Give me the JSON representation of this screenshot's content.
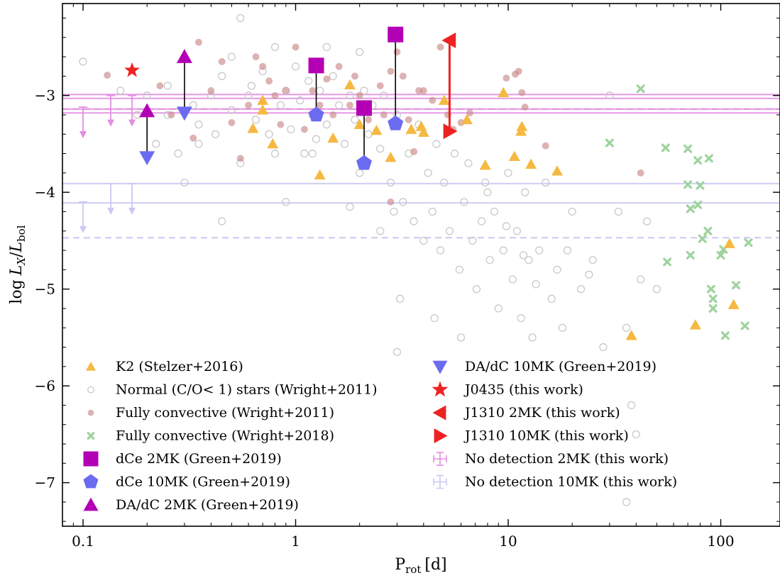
{
  "chart_data": {
    "type": "scatter",
    "title": "",
    "xlabel": "P",
    "xlabel_sub": "rot",
    "xlabel_unit": "[d]",
    "ylabel_prefix": "log",
    "ylabel_num": "L",
    "ylabel_num_sub": "X",
    "ylabel_den": "L",
    "ylabel_den_sub": "bol",
    "xscale": "log",
    "xlim": [
      0.08,
      190
    ],
    "ylim": [
      -7.45,
      -2.05
    ],
    "xticks": [
      0.1,
      1,
      10,
      100
    ],
    "xtick_labels": [
      "0.1",
      "1",
      "10",
      "100"
    ],
    "yticks": [
      -3,
      -4,
      -5,
      -6,
      -7
    ],
    "ytick_labels": [
      "−3",
      "−4",
      "−5",
      "−6",
      "−7"
    ],
    "legend_position": "lower-left",
    "colors": {
      "k2": "#f5b942",
      "normal": "#c8c8c8",
      "fc2011": "#c98b88",
      "fc2018": "#9ed39e",
      "dce": "#b400b4",
      "blue": "#6b6bf0",
      "j0435": "#ee2222",
      "j1310": "#ee2222",
      "nd2": "#e38ee3",
      "nd10": "#c9c9f4"
    },
    "series": [
      {
        "name": "K2 (Stelzer+2016)",
        "marker": "triangle-up",
        "color": "#f5b942",
        "points": [
          [
            0.7,
            -3.05
          ],
          [
            0.7,
            -3.15
          ],
          [
            0.63,
            -3.34
          ],
          [
            0.78,
            -3.5
          ],
          [
            1.3,
            -3.82
          ],
          [
            1.5,
            -3.44
          ],
          [
            1.8,
            -2.89
          ],
          [
            2.0,
            -3.3
          ],
          [
            2.4,
            -3.36
          ],
          [
            2.8,
            -3.64
          ],
          [
            3.5,
            -3.35
          ],
          [
            3.9,
            -3.32
          ],
          [
            4.0,
            -3.38
          ],
          [
            5.0,
            -3.05
          ],
          [
            6.4,
            -3.25
          ],
          [
            7.8,
            -3.72
          ],
          [
            9.5,
            -2.97
          ],
          [
            10.7,
            -3.63
          ],
          [
            11.5,
            -3.37
          ],
          [
            11.6,
            -3.32
          ],
          [
            12.8,
            -3.71
          ],
          [
            17.0,
            -3.78
          ],
          [
            38.0,
            -5.48
          ],
          [
            76.0,
            -5.37
          ],
          [
            110.0,
            -4.53
          ],
          [
            115.0,
            -5.16
          ]
        ]
      },
      {
        "name": "Normal (C/O< 1) stars (Wright+2011)",
        "marker": "circle-open",
        "color": "#c8c8c8",
        "points": [
          [
            0.1,
            -2.65
          ],
          [
            0.15,
            -2.95
          ],
          [
            0.18,
            -3.2
          ],
          [
            0.2,
            -3.0
          ],
          [
            0.22,
            -3.5
          ],
          [
            0.25,
            -3.2
          ],
          [
            0.28,
            -3.6
          ],
          [
            0.3,
            -3.9
          ],
          [
            0.33,
            -3.1
          ],
          [
            0.35,
            -3.3
          ],
          [
            0.4,
            -3.0
          ],
          [
            0.42,
            -3.4
          ],
          [
            0.45,
            -2.8
          ],
          [
            0.5,
            -3.15
          ],
          [
            0.55,
            -3.7
          ],
          [
            0.6,
            -3.0
          ],
          [
            0.62,
            -2.9
          ],
          [
            0.65,
            -3.25
          ],
          [
            0.7,
            -2.75
          ],
          [
            0.75,
            -3.4
          ],
          [
            0.8,
            -3.6
          ],
          [
            0.85,
            -3.1
          ],
          [
            0.9,
            -2.95
          ],
          [
            0.95,
            -3.35
          ],
          [
            1.0,
            -2.7
          ],
          [
            1.05,
            -3.05
          ],
          [
            1.1,
            -3.6
          ],
          [
            1.15,
            -2.85
          ],
          [
            1.2,
            -3.2
          ],
          [
            1.25,
            -3.45
          ],
          [
            1.3,
            -2.95
          ],
          [
            1.4,
            -3.3
          ],
          [
            1.5,
            -2.8
          ],
          [
            1.6,
            -3.1
          ],
          [
            1.7,
            -3.5
          ],
          [
            1.8,
            -3.0
          ],
          [
            1.9,
            -3.25
          ],
          [
            2.0,
            -3.8
          ],
          [
            2.1,
            -2.95
          ],
          [
            2.2,
            -3.4
          ],
          [
            2.3,
            -3.1
          ],
          [
            2.5,
            -3.55
          ],
          [
            2.6,
            -3.0
          ],
          [
            2.8,
            -3.9
          ],
          [
            3.0,
            -3.2
          ],
          [
            3.2,
            -4.1
          ],
          [
            3.4,
            -3.6
          ],
          [
            3.6,
            -4.3
          ],
          [
            3.8,
            -3.3
          ],
          [
            4.0,
            -4.5
          ],
          [
            4.2,
            -3.8
          ],
          [
            4.4,
            -4.2
          ],
          [
            4.6,
            -3.5
          ],
          [
            4.8,
            -4.6
          ],
          [
            5.0,
            -3.9
          ],
          [
            5.3,
            -4.4
          ],
          [
            5.6,
            -3.6
          ],
          [
            5.9,
            -4.8
          ],
          [
            6.2,
            -4.1
          ],
          [
            6.5,
            -3.7
          ],
          [
            6.8,
            -4.5
          ],
          [
            7.1,
            -5.0
          ],
          [
            7.5,
            -4.3
          ],
          [
            7.8,
            -3.9
          ],
          [
            8.2,
            -4.7
          ],
          [
            8.6,
            -4.2
          ],
          [
            9.0,
            -5.2
          ],
          [
            9.5,
            -4.6
          ],
          [
            10.0,
            -3.8
          ],
          [
            10.5,
            -4.9
          ],
          [
            11.0,
            -4.4
          ],
          [
            11.5,
            -5.3
          ],
          [
            12.0,
            -4.0
          ],
          [
            12.5,
            -4.7
          ],
          [
            13.0,
            -5.5
          ],
          [
            14.0,
            -4.6
          ],
          [
            15.0,
            -3.9
          ],
          [
            16.0,
            -5.1
          ],
          [
            17.0,
            -4.8
          ],
          [
            18.0,
            -5.4
          ],
          [
            20.0,
            -4.2
          ],
          [
            22.0,
            -5.0
          ],
          [
            25.0,
            -4.7
          ],
          [
            28.0,
            -5.6
          ],
          [
            30.0,
            -3.0
          ],
          [
            33.0,
            -4.2
          ],
          [
            36.0,
            -5.4
          ],
          [
            38.0,
            -6.2
          ],
          [
            40.0,
            -6.5
          ],
          [
            42.0,
            -4.9
          ],
          [
            45.0,
            -4.3
          ],
          [
            50.0,
            -5.0
          ],
          [
            3.0,
            -5.65
          ],
          [
            2.9,
            -4.2
          ],
          [
            2.5,
            -4.4
          ],
          [
            1.8,
            -4.15
          ],
          [
            1.2,
            -3.6
          ],
          [
            0.9,
            -4.1
          ],
          [
            0.45,
            -4.3
          ],
          [
            0.35,
            -3.5
          ],
          [
            0.25,
            -2.9
          ],
          [
            0.5,
            -2.6
          ],
          [
            1.4,
            -2.5
          ],
          [
            2.0,
            -2.55
          ],
          [
            0.8,
            -2.5
          ],
          [
            0.55,
            -2.2
          ],
          [
            36.0,
            -7.2
          ],
          [
            3.1,
            -5.1
          ],
          [
            4.5,
            -5.3
          ],
          [
            6.0,
            -5.5
          ],
          [
            8.0,
            -4.0
          ],
          [
            9.8,
            -4.35
          ],
          [
            11.8,
            -4.65
          ],
          [
            13.5,
            -4.95
          ],
          [
            19.0,
            -4.6
          ],
          [
            24.0,
            -4.85
          ]
        ]
      },
      {
        "name": "Fully convective (Wright+2011)",
        "marker": "circle",
        "color": "#c98b88",
        "points": [
          [
            0.13,
            -2.79
          ],
          [
            0.23,
            -2.9
          ],
          [
            0.26,
            -3.2
          ],
          [
            0.33,
            -3.44
          ],
          [
            0.35,
            -2.45
          ],
          [
            0.4,
            -2.95
          ],
          [
            0.45,
            -2.65
          ],
          [
            0.5,
            -3.28
          ],
          [
            0.55,
            -3.65
          ],
          [
            0.6,
            -3.1
          ],
          [
            0.65,
            -2.6
          ],
          [
            0.7,
            -2.7
          ],
          [
            0.75,
            -2.85
          ],
          [
            0.8,
            -3.0
          ],
          [
            0.85,
            -3.3
          ],
          [
            0.9,
            -2.95
          ],
          [
            1.0,
            -2.5
          ],
          [
            1.1,
            -3.35
          ],
          [
            1.2,
            -2.95
          ],
          [
            1.3,
            -3.1
          ],
          [
            1.4,
            -2.83
          ],
          [
            1.5,
            -3.2
          ],
          [
            1.6,
            -2.7
          ],
          [
            1.8,
            -3.1
          ],
          [
            1.9,
            -2.8
          ],
          [
            2.0,
            -3.0
          ],
          [
            2.2,
            -3.25
          ],
          [
            2.5,
            -2.9
          ],
          [
            2.6,
            -3.2
          ],
          [
            2.8,
            -2.75
          ],
          [
            3.0,
            -2.55
          ],
          [
            3.2,
            -2.8
          ],
          [
            3.4,
            -3.25
          ],
          [
            3.6,
            -3.58
          ],
          [
            3.8,
            -2.95
          ],
          [
            4.0,
            -2.95
          ],
          [
            4.4,
            -3.05
          ],
          [
            4.8,
            -2.5
          ],
          [
            5.2,
            -3.2
          ],
          [
            5.5,
            -3.35
          ],
          [
            6.0,
            -3.28
          ],
          [
            6.6,
            -3.18
          ],
          [
            9.8,
            -2.82
          ],
          [
            10.8,
            -2.78
          ],
          [
            11.2,
            -2.75
          ],
          [
            11.6,
            -2.97
          ],
          [
            12.0,
            -3.12
          ],
          [
            15.0,
            -3.52
          ],
          [
            42.0,
            -3.8
          ],
          [
            2.8,
            -4.1
          ]
        ]
      },
      {
        "name": "Fully convective (Wright+2018)",
        "marker": "x",
        "color": "#9ed39e",
        "points": [
          [
            30.0,
            -3.49
          ],
          [
            42.0,
            -2.93
          ],
          [
            55.0,
            -3.54
          ],
          [
            56.0,
            -4.72
          ],
          [
            70.0,
            -3.55
          ],
          [
            70.0,
            -3.92
          ],
          [
            72.0,
            -4.17
          ],
          [
            72.0,
            -4.65
          ],
          [
            78.0,
            -4.13
          ],
          [
            78.0,
            -3.67
          ],
          [
            80.0,
            -3.93
          ],
          [
            82.0,
            -4.48
          ],
          [
            87.0,
            -4.4
          ],
          [
            88.0,
            -3.65
          ],
          [
            90.0,
            -5.0
          ],
          [
            92.0,
            -5.1
          ],
          [
            92.0,
            -5.2
          ],
          [
            100.0,
            -4.65
          ],
          [
            103.0,
            -4.59
          ],
          [
            105.0,
            -5.48
          ],
          [
            118.0,
            -4.96
          ],
          [
            130.0,
            -5.38
          ],
          [
            135.0,
            -4.52
          ]
        ]
      },
      {
        "name": "dCe 2MK (Green+2019)",
        "marker": "square",
        "color": "#b400b4",
        "points": [
          [
            1.25,
            -2.69
          ],
          [
            2.1,
            -3.13
          ],
          [
            2.95,
            -2.37
          ]
        ]
      },
      {
        "name": "dCe 10MK (Green+2019)",
        "marker": "pentagon",
        "color": "#6b6bf0",
        "points": [
          [
            1.25,
            -3.2
          ],
          [
            2.1,
            -3.7
          ],
          [
            2.95,
            -3.29
          ]
        ]
      },
      {
        "name": "DA/dC 2MK (Green+2019)",
        "marker": "triangle-up",
        "color": "#b400b4",
        "points": [
          [
            0.2,
            -3.16
          ],
          [
            0.3,
            -2.6
          ]
        ]
      },
      {
        "name": "DA/dC 10MK (Green+2019)",
        "marker": "triangle-down",
        "color": "#6b6bf0",
        "points": [
          [
            0.2,
            -3.64
          ],
          [
            0.3,
            -3.18
          ]
        ]
      },
      {
        "name": "J0435 (this work)",
        "marker": "star",
        "color": "#ee2222",
        "points": [
          [
            0.17,
            -2.74
          ]
        ]
      },
      {
        "name": "J1310 2MK (this work)",
        "marker": "triangle-left",
        "color": "#ee2222",
        "points": [
          [
            5.3,
            -2.43
          ]
        ]
      },
      {
        "name": "J1310 10MK (this work)",
        "marker": "triangle-right",
        "color": "#ee2222",
        "points": [
          [
            5.3,
            -3.37
          ]
        ]
      },
      {
        "name": "No detection 2MK (this work)",
        "marker": "upper-limit",
        "color": "#e38ee3",
        "hlines": [
          -2.99,
          -3.03,
          -3.14,
          -3.18
        ],
        "dashed_hline": -3.14,
        "limits": [
          [
            0.1,
            -3.12
          ],
          [
            0.135,
            -3.0
          ],
          [
            0.17,
            -3.0
          ]
        ]
      },
      {
        "name": "No detection 10MK (this work)",
        "marker": "upper-limit",
        "color": "#c9c9f4",
        "hlines": [
          -3.91,
          -4.11
        ],
        "dashed_hline": -4.47,
        "limits": [
          [
            0.1,
            -4.1
          ],
          [
            0.135,
            -3.91
          ],
          [
            0.17,
            -3.91
          ]
        ]
      }
    ],
    "connectors": [
      {
        "color": "#000000",
        "x": 0.2,
        "y1": -3.16,
        "y2": -3.64
      },
      {
        "color": "#000000",
        "x": 0.3,
        "y1": -2.6,
        "y2": -3.18
      },
      {
        "color": "#000000",
        "x": 1.25,
        "y1": -2.69,
        "y2": -3.2
      },
      {
        "color": "#000000",
        "x": 2.1,
        "y1": -3.13,
        "y2": -3.7
      },
      {
        "color": "#000000",
        "x": 2.95,
        "y1": -2.37,
        "y2": -3.29
      },
      {
        "color": "#ee2222",
        "x": 5.3,
        "y1": -2.43,
        "y2": -3.37
      }
    ]
  }
}
